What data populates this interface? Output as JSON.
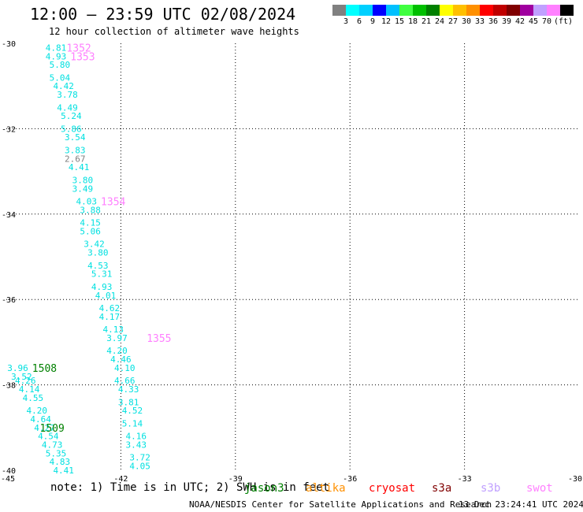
{
  "header": {
    "title": "12:00 — 23:59 UTC 02/08/2024",
    "subtitle": "12 hour collection of altimeter wave heights"
  },
  "color_scale": {
    "colors": [
      "#808080",
      "#00ffff",
      "#00d0ff",
      "#0000ff",
      "#00c0ff",
      "#40ff40",
      "#00c000",
      "#008000",
      "#ffff00",
      "#ffc000",
      "#ff9000",
      "#ff0000",
      "#c00000",
      "#800000",
      "#a000a0",
      "#c0a0ff",
      "#ff80ff",
      "#000000"
    ],
    "labels": [
      "3",
      "6",
      "9",
      "12",
      "15",
      "18",
      "21",
      "24",
      "27",
      "30",
      "33",
      "36",
      "39",
      "42",
      "45",
      "70",
      "(ft)"
    ]
  },
  "axes": {
    "lon_ticks": [
      "-45",
      "-42",
      "-39",
      "-36",
      "-33",
      "-30"
    ],
    "lat_ticks": [
      "-30",
      "-32",
      "-34",
      "-36",
      "-38",
      "-40"
    ]
  },
  "chart_data": {
    "type": "map",
    "lon_range": [
      -45,
      -30
    ],
    "lat_range": [
      -40,
      -30
    ],
    "grid": "dotted",
    "points": [
      {
        "lon": -43.7,
        "lat": -30.1,
        "value": "4.81",
        "color": "#00e0e0"
      },
      {
        "lon": -43.7,
        "lat": -30.3,
        "value": "4.93",
        "color": "#00e0e0"
      },
      {
        "lon": -43.6,
        "lat": -30.5,
        "value": "5.80",
        "color": "#00e0e0"
      },
      {
        "lon": -43.6,
        "lat": -30.8,
        "value": "5.04",
        "color": "#00e0e0"
      },
      {
        "lon": -43.5,
        "lat": -31.0,
        "value": "4.42",
        "color": "#00e0e0"
      },
      {
        "lon": -43.4,
        "lat": -31.2,
        "value": "3.78",
        "color": "#00e0e0"
      },
      {
        "lon": -43.4,
        "lat": -31.5,
        "value": "4.49",
        "color": "#00e0e0"
      },
      {
        "lon": -43.3,
        "lat": -31.7,
        "value": "5.24",
        "color": "#00e0e0"
      },
      {
        "lon": -43.3,
        "lat": -32.0,
        "value": "5.86",
        "color": "#00e0e0"
      },
      {
        "lon": -43.2,
        "lat": -32.2,
        "value": "3.54",
        "color": "#00e0e0"
      },
      {
        "lon": -43.2,
        "lat": -32.5,
        "value": "3.83",
        "color": "#00e0e0"
      },
      {
        "lon": -43.2,
        "lat": -32.7,
        "value": "2.67",
        "color": "#808080"
      },
      {
        "lon": -43.1,
        "lat": -32.9,
        "value": "4.41",
        "color": "#00e0e0"
      },
      {
        "lon": -43.0,
        "lat": -33.2,
        "value": "3.80",
        "color": "#00e0e0"
      },
      {
        "lon": -43.0,
        "lat": -33.4,
        "value": "3.49",
        "color": "#00e0e0"
      },
      {
        "lon": -42.9,
        "lat": -33.7,
        "value": "4.03",
        "color": "#00e0e0"
      },
      {
        "lon": -42.8,
        "lat": -33.9,
        "value": "3.88",
        "color": "#00e0e0"
      },
      {
        "lon": -42.8,
        "lat": -34.2,
        "value": "4.15",
        "color": "#00e0e0"
      },
      {
        "lon": -42.8,
        "lat": -34.4,
        "value": "5.06",
        "color": "#00e0e0"
      },
      {
        "lon": -42.7,
        "lat": -34.7,
        "value": "3.42",
        "color": "#00e0e0"
      },
      {
        "lon": -42.6,
        "lat": -34.9,
        "value": "3.80",
        "color": "#00e0e0"
      },
      {
        "lon": -42.6,
        "lat": -35.2,
        "value": "4.53",
        "color": "#00e0e0"
      },
      {
        "lon": -42.5,
        "lat": -35.4,
        "value": "5.31",
        "color": "#00e0e0"
      },
      {
        "lon": -42.5,
        "lat": -35.7,
        "value": "4.93",
        "color": "#00e0e0"
      },
      {
        "lon": -42.4,
        "lat": -35.9,
        "value": "4.01",
        "color": "#00e0e0"
      },
      {
        "lon": -42.3,
        "lat": -36.2,
        "value": "4.62",
        "color": "#00e0e0"
      },
      {
        "lon": -42.3,
        "lat": -36.4,
        "value": "4.17",
        "color": "#00e0e0"
      },
      {
        "lon": -42.2,
        "lat": -36.7,
        "value": "4.13",
        "color": "#00e0e0"
      },
      {
        "lon": -42.1,
        "lat": -36.9,
        "value": "3.97",
        "color": "#00e0e0"
      },
      {
        "lon": -42.1,
        "lat": -37.2,
        "value": "4.20",
        "color": "#00e0e0"
      },
      {
        "lon": -42.0,
        "lat": -37.4,
        "value": "4.46",
        "color": "#00e0e0"
      },
      {
        "lon": -41.9,
        "lat": -37.6,
        "value": "4.10",
        "color": "#00e0e0"
      },
      {
        "lon": -41.9,
        "lat": -37.9,
        "value": "4.66",
        "color": "#00e0e0"
      },
      {
        "lon": -41.8,
        "lat": -38.1,
        "value": "4.33",
        "color": "#00e0e0"
      },
      {
        "lon": -41.8,
        "lat": -38.4,
        "value": "3.81",
        "color": "#00e0e0"
      },
      {
        "lon": -41.7,
        "lat": -38.6,
        "value": "4.52",
        "color": "#00e0e0"
      },
      {
        "lon": -41.7,
        "lat": -38.9,
        "value": "5.14",
        "color": "#00e0e0"
      },
      {
        "lon": -41.6,
        "lat": -39.2,
        "value": "4.16",
        "color": "#00e0e0"
      },
      {
        "lon": -41.6,
        "lat": -39.4,
        "value": "3.43",
        "color": "#00e0e0"
      },
      {
        "lon": -41.5,
        "lat": -39.7,
        "value": "3.72",
        "color": "#00e0e0"
      },
      {
        "lon": -41.5,
        "lat": -39.9,
        "value": "4.05",
        "color": "#00e0e0"
      },
      {
        "lon": -44.7,
        "lat": -37.6,
        "value": "3.96",
        "color": "#00e0e0"
      },
      {
        "lon": -44.6,
        "lat": -37.8,
        "value": "3.52",
        "color": "#00e0e0"
      },
      {
        "lon": -44.5,
        "lat": -37.9,
        "value": "4.26",
        "color": "#00e0e0"
      },
      {
        "lon": -44.4,
        "lat": -38.1,
        "value": "4.14",
        "color": "#00e0e0"
      },
      {
        "lon": -44.3,
        "lat": -38.3,
        "value": "4.55",
        "color": "#00e0e0"
      },
      {
        "lon": -44.2,
        "lat": -38.6,
        "value": "4.20",
        "color": "#00e0e0"
      },
      {
        "lon": -44.1,
        "lat": -38.8,
        "value": "4.64",
        "color": "#00e0e0"
      },
      {
        "lon": -44.0,
        "lat": -39.0,
        "value": "4.27",
        "color": "#00e0e0"
      },
      {
        "lon": -43.9,
        "lat": -39.2,
        "value": "4.54",
        "color": "#00e0e0"
      },
      {
        "lon": -43.8,
        "lat": -39.4,
        "value": "4.73",
        "color": "#00e0e0"
      },
      {
        "lon": -43.7,
        "lat": -39.6,
        "value": "5.35",
        "color": "#00e0e0"
      },
      {
        "lon": -43.6,
        "lat": -39.8,
        "value": "4.83",
        "color": "#00e0e0"
      },
      {
        "lon": -43.5,
        "lat": -40.0,
        "value": "4.41",
        "color": "#00e0e0"
      }
    ],
    "pass_labels": [
      {
        "lon": -43.1,
        "lat": -30.1,
        "text": "1352",
        "color": "#ff80ff"
      },
      {
        "lon": -43.0,
        "lat": -30.3,
        "text": "1353",
        "color": "#ff80ff"
      },
      {
        "lon": -42.2,
        "lat": -33.7,
        "text": "1354",
        "color": "#ff80ff"
      },
      {
        "lon": -41.0,
        "lat": -36.9,
        "text": "1355",
        "color": "#ff80ff"
      },
      {
        "lon": -44.0,
        "lat": -37.6,
        "text": "1508",
        "color": "#008000"
      },
      {
        "lon": -43.8,
        "lat": -39.0,
        "text": "1509",
        "color": "#008000"
      }
    ]
  },
  "footer": {
    "note": "note: 1) Time is in UTC; 2) SWH is in feet",
    "satellites": [
      {
        "name": "jason3",
        "color": "#008000"
      },
      {
        "name": "altika",
        "color": "#ff9000"
      },
      {
        "name": "cryosat",
        "color": "#ff0000"
      },
      {
        "name": "s3a",
        "color": "#800000"
      },
      {
        "name": "s3b",
        "color": "#c0a0ff"
      },
      {
        "name": "swot",
        "color": "#ff80ff"
      }
    ],
    "credit": "NOAA/NESDIS Center for Satellite Applications and Research",
    "timestamp": "13 Dec 23:24:41 UTC 2024"
  }
}
